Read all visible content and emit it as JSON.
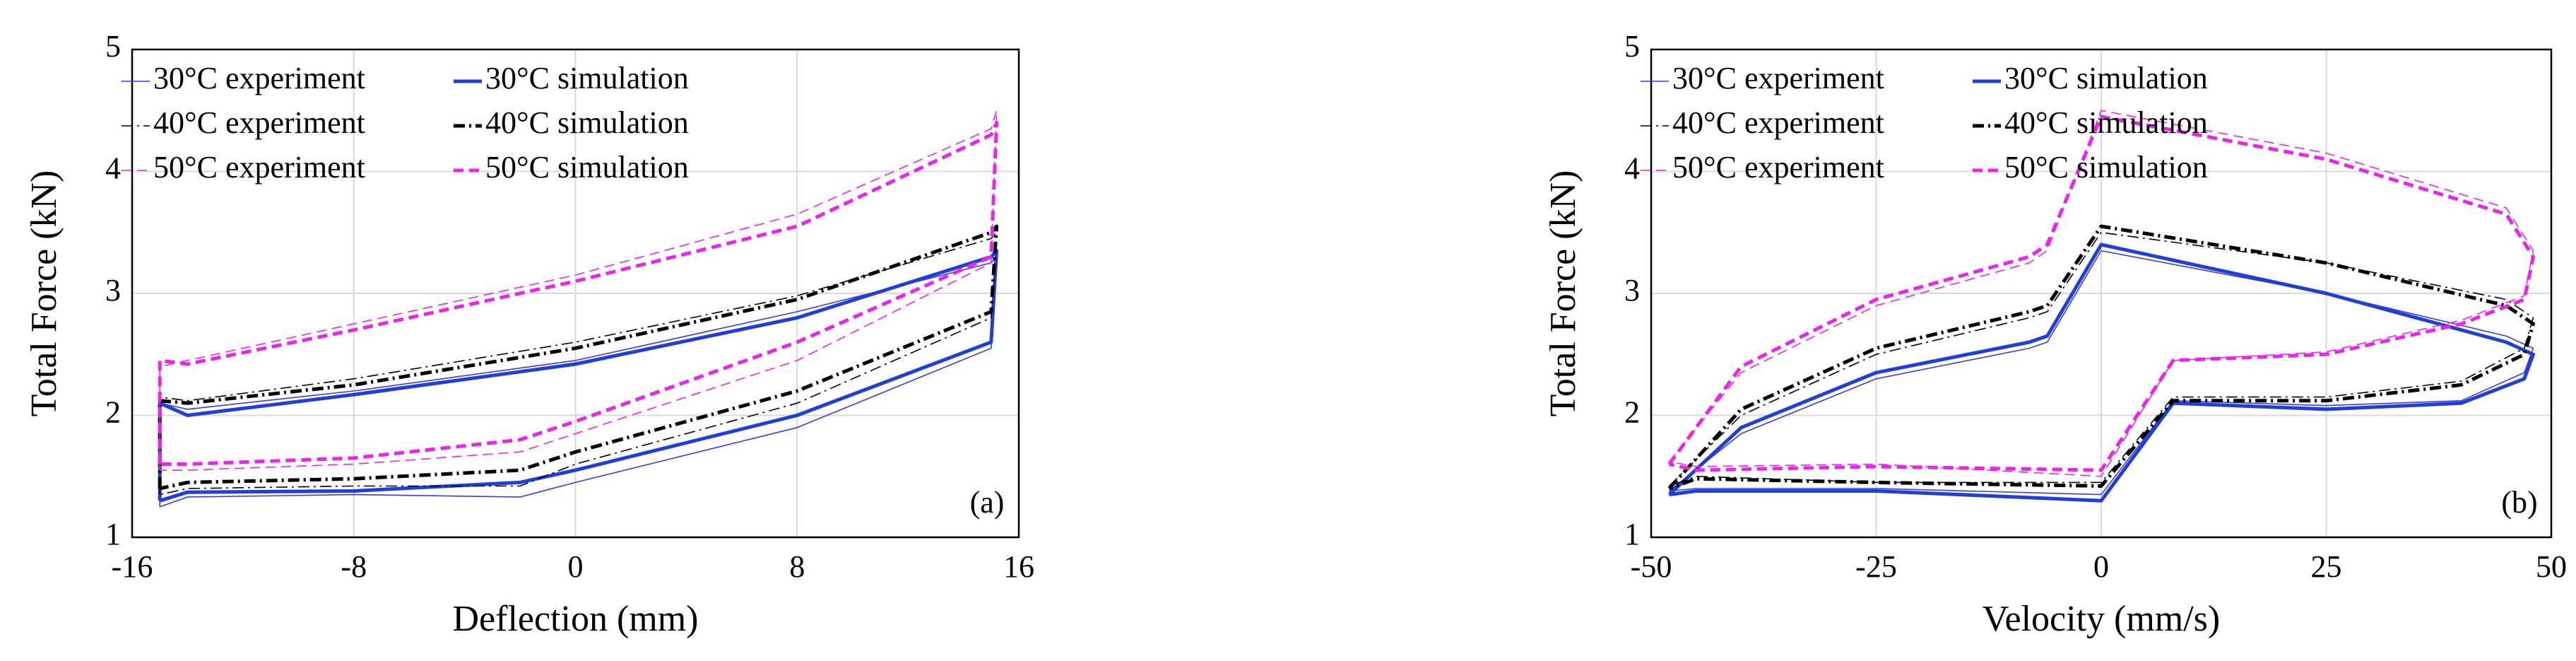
{
  "chart_data": [
    {
      "type": "line",
      "xlabel": "Deflection (mm)",
      "ylabel": "Total Force (kN)",
      "annotation": "(a)",
      "xlim": [
        -16,
        16
      ],
      "ylim": [
        1,
        5
      ],
      "xticks": [
        -16,
        -8,
        0,
        8,
        16
      ],
      "yticks": [
        1,
        2,
        3,
        4,
        5
      ],
      "grid": true,
      "legend": "upper left",
      "series": [
        {
          "name": "30°C experiment",
          "color": "#3a3ae0",
          "dash": "solid",
          "weight": "thin",
          "x": [
            -15,
            -15,
            -14,
            -8,
            0,
            8,
            15,
            15.2,
            15,
            8,
            0,
            -2,
            -8,
            -14,
            -15
          ],
          "values": [
            1.25,
            2.1,
            2.05,
            2.2,
            2.45,
            2.85,
            3.25,
            3.3,
            2.55,
            1.9,
            1.45,
            1.33,
            1.35,
            1.33,
            1.25
          ]
        },
        {
          "name": "30°C simulation",
          "color": "#1f3fd6",
          "dash": "solid",
          "weight": "thick",
          "x": [
            -15,
            -15,
            -14,
            -8,
            0,
            8,
            15,
            15.2,
            15,
            8,
            0,
            -2,
            -8,
            -14,
            -15
          ],
          "values": [
            1.3,
            2.1,
            2.0,
            2.17,
            2.42,
            2.8,
            3.3,
            3.35,
            2.6,
            2.0,
            1.55,
            1.45,
            1.38,
            1.37,
            1.3
          ]
        },
        {
          "name": "40°C experiment",
          "color": "#000000",
          "dash": "dashdot",
          "weight": "thin",
          "x": [
            -15,
            -15,
            -14,
            -8,
            0,
            8,
            15,
            15.2,
            15,
            8,
            0,
            -2,
            -8,
            -14,
            -15
          ],
          "values": [
            1.35,
            2.15,
            2.12,
            2.3,
            2.6,
            2.98,
            3.45,
            3.5,
            2.8,
            2.1,
            1.6,
            1.42,
            1.42,
            1.4,
            1.35
          ]
        },
        {
          "name": "40°C simulation",
          "color": "#000000",
          "dash": "dashdot",
          "weight": "thick",
          "x": [
            -15,
            -15,
            -14,
            -8,
            0,
            8,
            15,
            15.2,
            15,
            8,
            0,
            -2,
            -8,
            -14,
            -15
          ],
          "values": [
            1.4,
            2.12,
            2.1,
            2.25,
            2.55,
            2.95,
            3.5,
            3.55,
            2.85,
            2.2,
            1.7,
            1.55,
            1.48,
            1.45,
            1.4
          ]
        },
        {
          "name": "50°C experiment",
          "color": "#ee22ee",
          "dash": "dashed",
          "weight": "thin",
          "x": [
            -15,
            -15,
            -14,
            -8,
            0,
            8,
            15,
            15.2,
            15,
            8,
            0,
            -2,
            -8,
            -14,
            -15
          ],
          "values": [
            1.55,
            2.4,
            2.45,
            2.75,
            3.15,
            3.65,
            4.35,
            4.5,
            3.25,
            2.45,
            1.85,
            1.7,
            1.6,
            1.55,
            1.55
          ]
        },
        {
          "name": "50°C simulation",
          "color": "#ee22ee",
          "dash": "dashed",
          "weight": "thick",
          "x": [
            -15,
            -15,
            -14,
            -8,
            0,
            8,
            15,
            15.2,
            15,
            8,
            0,
            -2,
            -8,
            -14,
            -15
          ],
          "values": [
            1.6,
            2.45,
            2.42,
            2.7,
            3.1,
            3.55,
            4.3,
            4.4,
            3.3,
            2.6,
            1.95,
            1.8,
            1.65,
            1.6,
            1.6
          ]
        }
      ]
    },
    {
      "type": "line",
      "xlabel": "Velocity (mm/s)",
      "ylabel": "Total Force (kN)",
      "annotation": "(b)",
      "xlim": [
        -50,
        50
      ],
      "ylim": [
        1,
        5
      ],
      "xticks": [
        -50,
        -25,
        0,
        25,
        50
      ],
      "yticks": [
        1,
        2,
        3,
        4,
        5
      ],
      "grid": true,
      "legend": "upper left",
      "series": [
        {
          "name": "30°C experiment",
          "color": "#3a3ae0",
          "dash": "solid",
          "weight": "thin",
          "x": [
            -48,
            -40,
            -25,
            -8,
            -6,
            0,
            25,
            45,
            48,
            47,
            40,
            25,
            8,
            0,
            -25,
            -45,
            -48
          ],
          "values": [
            1.38,
            1.85,
            2.3,
            2.55,
            2.6,
            3.35,
            3.0,
            2.65,
            2.55,
            2.35,
            2.12,
            2.08,
            2.12,
            1.35,
            1.4,
            1.4,
            1.38
          ]
        },
        {
          "name": "30°C simulation",
          "color": "#1f3fd6",
          "dash": "solid",
          "weight": "thick",
          "x": [
            -48,
            -40,
            -25,
            -8,
            -6,
            0,
            25,
            45,
            48,
            47,
            40,
            25,
            8,
            0,
            -25,
            -45,
            -48
          ],
          "values": [
            1.35,
            1.9,
            2.35,
            2.6,
            2.65,
            3.4,
            3.0,
            2.6,
            2.5,
            2.3,
            2.1,
            2.05,
            2.1,
            1.3,
            1.38,
            1.38,
            1.35
          ]
        },
        {
          "name": "40°C experiment",
          "color": "#000000",
          "dash": "dashdot",
          "weight": "thin",
          "x": [
            -48,
            -40,
            -25,
            -8,
            -6,
            0,
            25,
            45,
            48,
            47,
            40,
            25,
            8,
            0,
            -25,
            -45,
            -48
          ],
          "values": [
            1.42,
            2.0,
            2.5,
            2.8,
            2.85,
            3.5,
            3.25,
            2.95,
            2.8,
            2.55,
            2.28,
            2.15,
            2.15,
            1.45,
            1.45,
            1.5,
            1.42
          ]
        },
        {
          "name": "40°C simulation",
          "color": "#000000",
          "dash": "dashdot",
          "weight": "thick",
          "x": [
            -48,
            -40,
            -25,
            -8,
            -6,
            0,
            25,
            45,
            48,
            47,
            40,
            25,
            8,
            0,
            -25,
            -45,
            -48
          ],
          "values": [
            1.4,
            2.05,
            2.55,
            2.85,
            2.9,
            3.55,
            3.25,
            2.9,
            2.75,
            2.5,
            2.25,
            2.12,
            2.12,
            1.42,
            1.45,
            1.48,
            1.4
          ]
        },
        {
          "name": "50°C experiment",
          "color": "#ee22ee",
          "dash": "dashed",
          "weight": "thin",
          "x": [
            -48,
            -40,
            -25,
            -8,
            -6,
            0,
            25,
            45,
            48,
            47,
            40,
            25,
            8,
            0,
            -25,
            -45,
            -48
          ],
          "values": [
            1.62,
            2.35,
            2.9,
            3.25,
            3.35,
            4.5,
            4.15,
            3.7,
            3.35,
            2.98,
            2.78,
            2.52,
            2.45,
            1.5,
            1.6,
            1.58,
            1.62
          ]
        },
        {
          "name": "50°C simulation",
          "color": "#ee22ee",
          "dash": "dashed",
          "weight": "thick",
          "x": [
            -48,
            -40,
            -25,
            -8,
            -6,
            0,
            25,
            45,
            48,
            47,
            40,
            25,
            8,
            0,
            -25,
            -45,
            -48
          ],
          "values": [
            1.6,
            2.4,
            2.95,
            3.3,
            3.4,
            4.45,
            4.1,
            3.65,
            3.3,
            2.95,
            2.75,
            2.5,
            2.45,
            1.55,
            1.58,
            1.55,
            1.6
          ]
        }
      ]
    }
  ]
}
